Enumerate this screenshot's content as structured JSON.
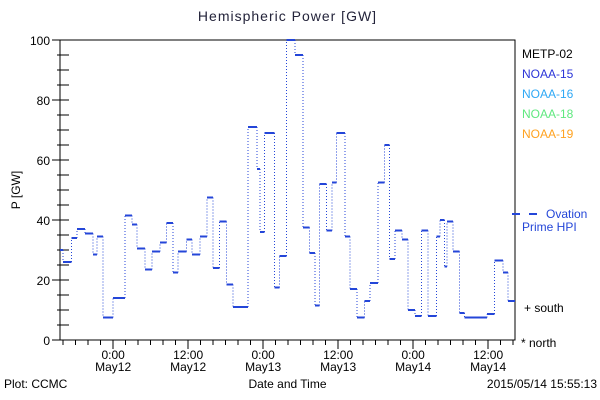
{
  "title": "Hemispheric Power [GW]",
  "y_axis": {
    "label": "P [GW]",
    "range": [
      0,
      100
    ],
    "ticks": [
      0,
      20,
      40,
      60,
      80,
      100
    ],
    "minor_step": 5
  },
  "x_axis": {
    "label": "Date and Time",
    "range_hours": [
      -8.5,
      64.3
    ],
    "minor_step_hours": 2,
    "ticks": [
      {
        "hours": 0,
        "time": "0:00",
        "date": "May12"
      },
      {
        "hours": 12,
        "time": "12:00",
        "date": "May12"
      },
      {
        "hours": 24,
        "time": "0:00",
        "date": "May13"
      },
      {
        "hours": 36,
        "time": "12:00",
        "date": "May13"
      },
      {
        "hours": 48,
        "time": "0:00",
        "date": "May14"
      },
      {
        "hours": 60,
        "time": "12:00",
        "date": "May14"
      }
    ]
  },
  "legend": {
    "satellites": [
      {
        "label": "METP-02",
        "color": "#000000"
      },
      {
        "label": "NOAA-15",
        "color": "#2b35d8"
      },
      {
        "label": "NOAA-16",
        "color": "#2fa8f5"
      },
      {
        "label": "NOAA-18",
        "color": "#5fe87f"
      },
      {
        "label": "NOAA-19",
        "color": "#ffa21f"
      }
    ],
    "ovation": {
      "label_line1": "Ovation",
      "label_line2": "Prime HPI",
      "color": "#2446d8"
    },
    "south_label": "+ south",
    "north_label": "* north"
  },
  "footer": {
    "credit": "Plot: CCMC",
    "timestamp": "2015/05/14 15:55:13"
  },
  "chart_data": {
    "type": "line",
    "title": "Hemispheric Power [GW]",
    "xlabel": "Date and Time",
    "ylabel": "P [GW]",
    "ylim": [
      0,
      100
    ],
    "x_units": "hours from 2015-05-12 00:00 UT (range May11 ~15:30 to May14 ~16:20)",
    "grid": false,
    "legend_position": "right",
    "series": [
      {
        "name": "NOAA-15 hemispheric power (dotted step line, solid plateau markers)",
        "color": "#2446d8",
        "units": "GW",
        "end_hours": 64.3,
        "steps": [
          [
            -8.5,
            30
          ],
          [
            -8.0,
            26
          ],
          [
            -6.7,
            34
          ],
          [
            -5.8,
            37
          ],
          [
            -4.5,
            35.5
          ],
          [
            -3.2,
            28.5
          ],
          [
            -2.6,
            34.5
          ],
          [
            -1.6,
            7.5
          ],
          [
            0.0,
            14
          ],
          [
            1.9,
            41.5
          ],
          [
            3.0,
            38.5
          ],
          [
            3.8,
            30.5
          ],
          [
            5.1,
            23.5
          ],
          [
            6.2,
            29.5
          ],
          [
            7.5,
            32.5
          ],
          [
            8.5,
            39
          ],
          [
            9.6,
            22.5
          ],
          [
            10.4,
            29.5
          ],
          [
            11.7,
            33.5
          ],
          [
            12.6,
            28.5
          ],
          [
            13.9,
            34.5
          ],
          [
            15.0,
            47.5
          ],
          [
            16.0,
            24
          ],
          [
            17.0,
            39.5
          ],
          [
            18.1,
            18.5
          ],
          [
            19.2,
            11
          ],
          [
            21.6,
            71
          ],
          [
            23.0,
            57
          ],
          [
            23.5,
            36
          ],
          [
            24.2,
            69
          ],
          [
            25.8,
            17.5
          ],
          [
            26.6,
            28
          ],
          [
            27.7,
            100
          ],
          [
            29.1,
            95
          ],
          [
            30.4,
            37.5
          ],
          [
            31.4,
            29
          ],
          [
            32.3,
            11.5
          ],
          [
            33.0,
            52
          ],
          [
            34.1,
            36.5
          ],
          [
            35.0,
            52.5
          ],
          [
            35.7,
            69
          ],
          [
            37.1,
            34.5
          ],
          [
            37.9,
            17
          ],
          [
            39.0,
            7.5
          ],
          [
            40.2,
            13
          ],
          [
            41.1,
            19
          ],
          [
            42.4,
            52.5
          ],
          [
            43.4,
            65
          ],
          [
            44.2,
            27
          ],
          [
            45.1,
            36.5
          ],
          [
            46.2,
            33.5
          ],
          [
            47.2,
            10
          ],
          [
            48.3,
            8
          ],
          [
            49.3,
            36.5
          ],
          [
            50.4,
            8
          ],
          [
            51.7,
            34.5
          ],
          [
            52.3,
            40
          ],
          [
            53.0,
            24.5
          ],
          [
            53.4,
            39.5
          ],
          [
            54.4,
            29.5
          ],
          [
            55.4,
            9
          ],
          [
            56.2,
            7.5
          ],
          [
            59.8,
            8.7
          ],
          [
            61.0,
            26.5
          ],
          [
            62.4,
            22.5
          ],
          [
            63.2,
            13
          ]
        ]
      }
    ]
  }
}
